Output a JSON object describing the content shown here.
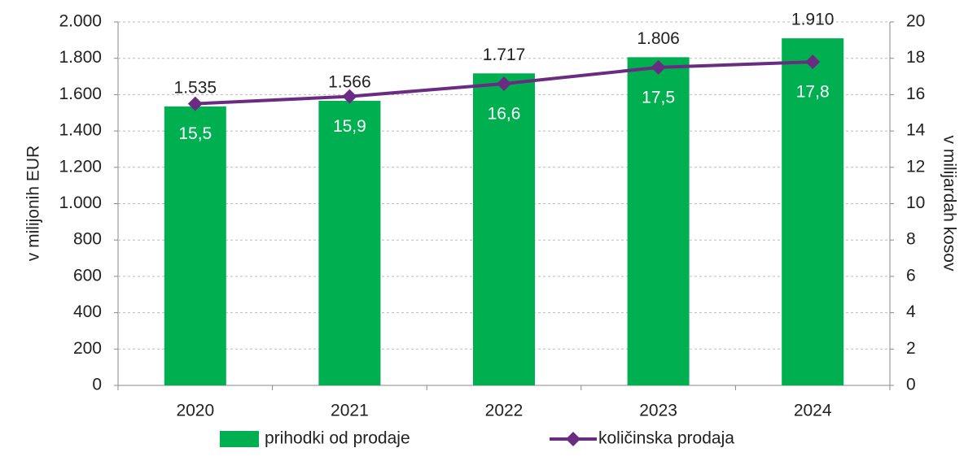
{
  "chart_data": {
    "type": "bar",
    "categories": [
      "2020",
      "2021",
      "2022",
      "2023",
      "2024"
    ],
    "series": [
      {
        "name": "prihodki od prodaje",
        "color": "#00b050",
        "values": [
          1535,
          1566,
          1717,
          1806,
          1910
        ],
        "value_labels": [
          "1.535",
          "1.566",
          "1.717",
          "1.806",
          "1.910"
        ]
      },
      {
        "name": "količinska prodaja",
        "type": "line",
        "axis": "y2",
        "color": "#6a2c83",
        "values": [
          15.5,
          15.9,
          16.6,
          17.5,
          17.8
        ],
        "value_labels": [
          "15,5",
          "15,9",
          "16,6",
          "17,5",
          "17,8"
        ]
      }
    ],
    "ylabel": "v milijonih EUR",
    "y2label": "v milijardah kosov",
    "ylim": [
      0,
      2000
    ],
    "yticks": [
      0,
      200,
      400,
      600,
      800,
      {
        "value": 1000,
        "label": "1.000"
      },
      {
        "value": 1200,
        "label": "1.200"
      },
      {
        "value": 1400,
        "label": "1.400"
      },
      {
        "value": 1600,
        "label": "1.600"
      },
      {
        "value": 1800,
        "label": "1.800"
      },
      {
        "value": 2000,
        "label": "2.000"
      }
    ],
    "y2lim": [
      0,
      20
    ],
    "y2ticks": [
      0,
      2,
      4,
      6,
      8,
      10,
      12,
      14,
      16,
      18,
      20
    ],
    "grid": true,
    "legend": "bottom"
  }
}
